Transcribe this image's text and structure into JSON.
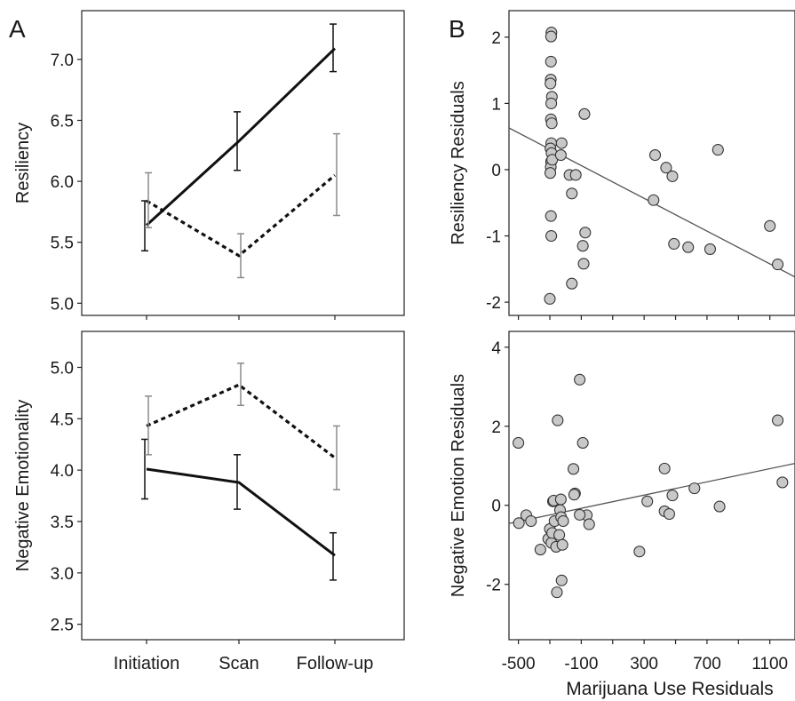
{
  "panels": {
    "a_label": "A",
    "b_label": "B"
  },
  "chart_data": [
    {
      "id": "A-top",
      "type": "line",
      "ylabel": "Resiliency",
      "xlabel": "",
      "categories": [
        "Initiation",
        "Scan",
        "Follow-up"
      ],
      "ylim": [
        4.9,
        7.4
      ],
      "yticks": [
        5.0,
        5.5,
        6.0,
        6.5,
        7.0
      ],
      "ytick_labels": [
        "5.0",
        "5.5",
        "6.0",
        "6.5",
        "7.0"
      ],
      "grid": false,
      "series": [
        {
          "style": "solid",
          "color": "#111111",
          "values": [
            5.64,
            6.33,
            7.09
          ],
          "err_low": [
            5.43,
            6.09,
            6.9
          ],
          "err_high": [
            5.84,
            6.57,
            7.29
          ]
        },
        {
          "style": "dotted",
          "color": "#111111",
          "errcolor": "#8a8a8a",
          "values": [
            5.84,
            5.39,
            6.05
          ],
          "err_low": [
            5.62,
            5.21,
            5.72
          ],
          "err_high": [
            6.07,
            5.57,
            6.39
          ]
        }
      ]
    },
    {
      "id": "A-bottom",
      "type": "line",
      "ylabel": "Negative Emotionality",
      "xlabel": "",
      "categories": [
        "Initiation",
        "Scan",
        "Follow-up"
      ],
      "ylim": [
        2.35,
        5.35
      ],
      "yticks": [
        2.5,
        3.0,
        3.5,
        4.0,
        4.5,
        5.0
      ],
      "ytick_labels": [
        "2.5",
        "3.0",
        "3.5",
        "4.0",
        "4.5",
        "5.0"
      ],
      "grid": false,
      "series": [
        {
          "style": "solid",
          "color": "#111111",
          "values": [
            4.01,
            3.88,
            3.17
          ],
          "err_low": [
            3.72,
            3.62,
            2.93
          ],
          "err_high": [
            4.3,
            4.15,
            3.39
          ]
        },
        {
          "style": "dotted",
          "color": "#111111",
          "errcolor": "#8a8a8a",
          "values": [
            4.43,
            4.83,
            4.12
          ],
          "err_low": [
            4.15,
            4.63,
            3.81
          ],
          "err_high": [
            4.72,
            5.04,
            4.43
          ]
        }
      ]
    },
    {
      "id": "B-top",
      "type": "scatter",
      "ylabel": "Resiliency Residuals",
      "xlabel": "",
      "xlim": [
        -560,
        1260
      ],
      "ylim": [
        -2.2,
        2.4
      ],
      "yticks": [
        -2,
        -1,
        0,
        1,
        2
      ],
      "ytick_labels": [
        "-2",
        "-1",
        "0",
        "1",
        "2"
      ],
      "xticks": [
        -500,
        -300,
        -100,
        100,
        300,
        500,
        700,
        900,
        1100
      ],
      "grid": false,
      "fit_line": {
        "x": [
          -560,
          1260
        ],
        "y": [
          0.63,
          -1.62
        ]
      },
      "points": [
        [
          -290,
          2.07
        ],
        [
          -292,
          2.01
        ],
        [
          -293,
          1.63
        ],
        [
          -294,
          1.36
        ],
        [
          -296,
          1.3
        ],
        [
          -287,
          1.1
        ],
        [
          -291,
          1.0
        ],
        [
          -293,
          0.76
        ],
        [
          -288,
          0.7
        ],
        [
          -291,
          0.4
        ],
        [
          -296,
          0.32
        ],
        [
          -289,
          0.25
        ],
        [
          -292,
          0.12
        ],
        [
          -294,
          0.04
        ],
        [
          -297,
          -0.05
        ],
        [
          -293,
          -0.7
        ],
        [
          -291,
          -1.0
        ],
        [
          -300,
          -1.95
        ],
        [
          -285,
          0.15
        ],
        [
          -230,
          0.22
        ],
        [
          -225,
          0.4
        ],
        [
          -175,
          -0.08
        ],
        [
          -135,
          -0.08
        ],
        [
          -160,
          -0.36
        ],
        [
          -80,
          0.84
        ],
        [
          -90,
          -1.15
        ],
        [
          -75,
          -0.95
        ],
        [
          -85,
          -1.42
        ],
        [
          -160,
          -1.72
        ],
        [
          370,
          0.22
        ],
        [
          360,
          -0.46
        ],
        [
          440,
          0.03
        ],
        [
          480,
          -0.1
        ],
        [
          490,
          -1.12
        ],
        [
          580,
          -1.17
        ],
        [
          770,
          0.3
        ],
        [
          720,
          -1.2
        ],
        [
          1100,
          -0.85
        ],
        [
          1150,
          -1.43
        ]
      ]
    },
    {
      "id": "B-bottom",
      "type": "scatter",
      "ylabel": "Negative Emotion Residuals",
      "xlabel": "Marijuana Use Residuals",
      "xlim": [
        -560,
        1260
      ],
      "ylim": [
        -3.4,
        4.4
      ],
      "yticks": [
        -2,
        0,
        2,
        4
      ],
      "ytick_labels": [
        "-2",
        "0",
        "2",
        "4"
      ],
      "xticks": [
        -500,
        -300,
        -100,
        100,
        300,
        500,
        700,
        900,
        1100
      ],
      "xtick_labels": [
        "-500",
        "-100",
        "300",
        "700",
        "1100"
      ],
      "xtick_label_values": [
        -500,
        -100,
        300,
        700,
        1100
      ],
      "grid": false,
      "fit_line": {
        "x": [
          -560,
          1260
        ],
        "y": [
          -0.46,
          1.06
        ]
      },
      "points": [
        [
          -500,
          1.58
        ],
        [
          -497,
          -0.45
        ],
        [
          -450,
          -0.25
        ],
        [
          -420,
          -0.4
        ],
        [
          -360,
          -1.12
        ],
        [
          -310,
          -0.85
        ],
        [
          -300,
          -0.6
        ],
        [
          -290,
          -0.95
        ],
        [
          -285,
          -0.7
        ],
        [
          -280,
          0.1
        ],
        [
          -275,
          0.12
        ],
        [
          -270,
          -0.4
        ],
        [
          -260,
          -1.05
        ],
        [
          -255,
          -2.2
        ],
        [
          -250,
          2.15
        ],
        [
          -240,
          -0.75
        ],
        [
          -235,
          -0.12
        ],
        [
          -230,
          0.15
        ],
        [
          -228,
          -0.3
        ],
        [
          -225,
          -1.9
        ],
        [
          -220,
          -1.0
        ],
        [
          -215,
          -0.4
        ],
        [
          -150,
          0.92
        ],
        [
          -140,
          0.3
        ],
        [
          -145,
          0.27
        ],
        [
          -90,
          1.58
        ],
        [
          -110,
          3.18
        ],
        [
          -65,
          -0.25
        ],
        [
          -50,
          -0.48
        ],
        [
          -110,
          -0.24
        ],
        [
          320,
          0.1
        ],
        [
          270,
          -1.17
        ],
        [
          430,
          0.93
        ],
        [
          430,
          -0.15
        ],
        [
          460,
          -0.22
        ],
        [
          480,
          0.25
        ],
        [
          620,
          0.43
        ],
        [
          780,
          -0.03
        ],
        [
          1150,
          2.15
        ],
        [
          1180,
          0.58
        ]
      ]
    }
  ]
}
